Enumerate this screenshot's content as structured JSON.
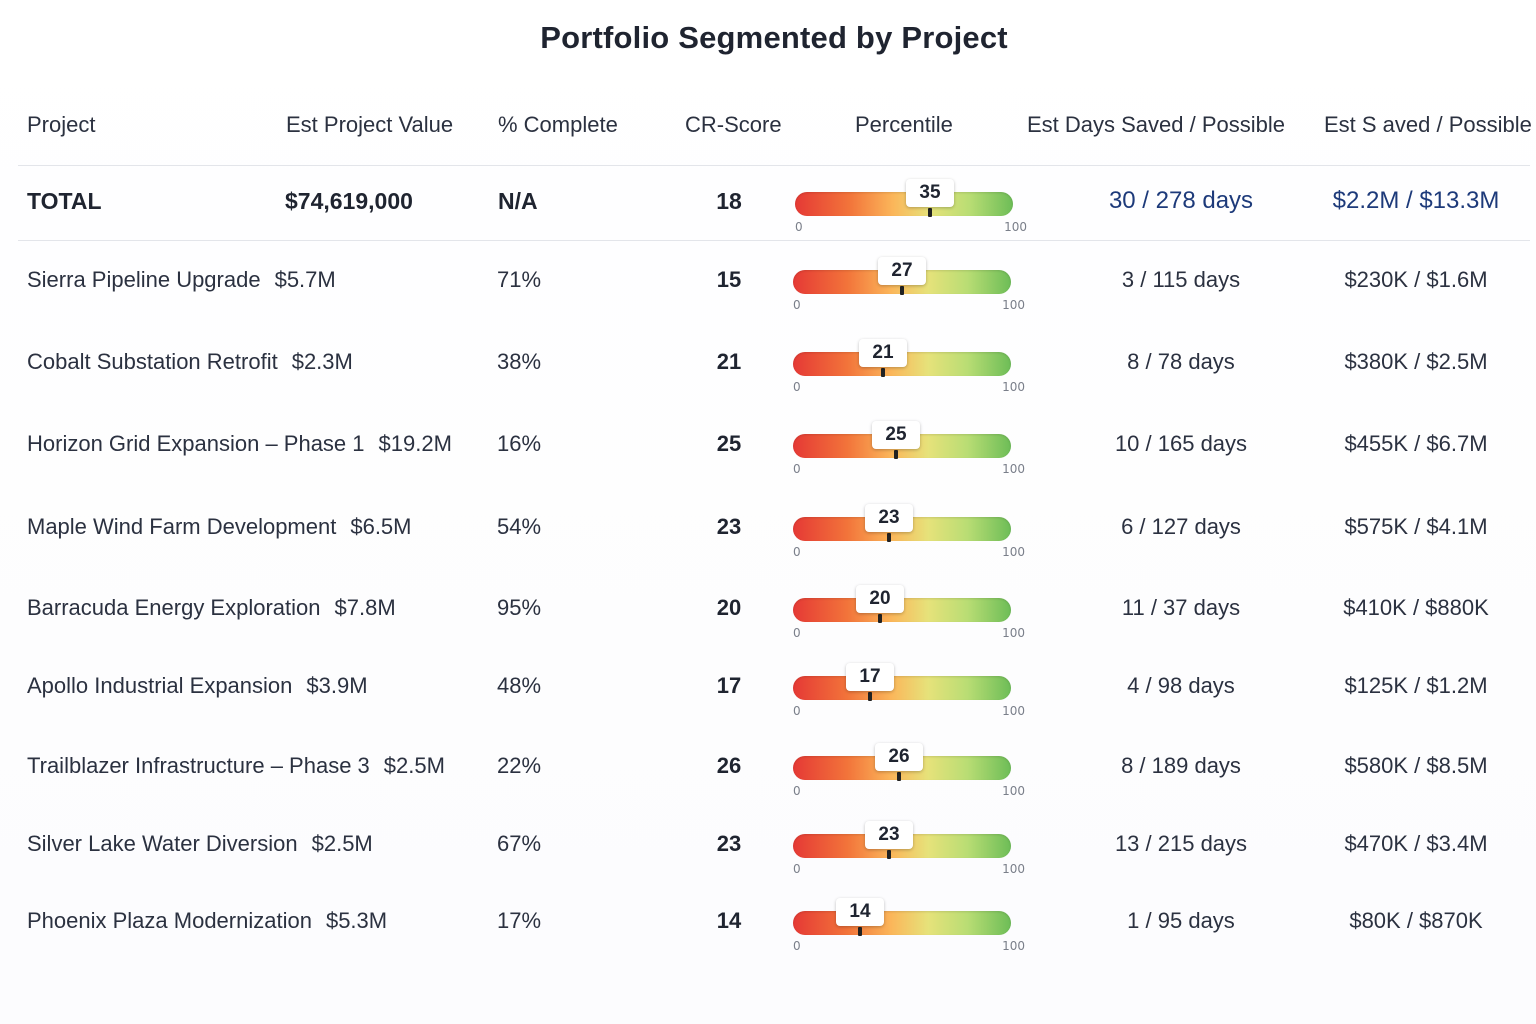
{
  "title": "Portfolio Segmented by Project",
  "headers": {
    "project": "Project",
    "value": "Est Project Value",
    "complete": "% Complete",
    "score": "CR-Score",
    "percentile": "Percentile",
    "days": "Est Days Saved / Possible",
    "saved": "Est S aved / Possible"
  },
  "gauge": {
    "min_label": "0",
    "max_label": "100"
  },
  "total": {
    "name": "TOTAL",
    "value": "$74,619,000",
    "complete": "N/A",
    "score": "18",
    "percentile": 35,
    "percentile_label": "35",
    "days": "30 / 278 days",
    "saved": "$2.2M / $13.3M"
  },
  "rows": [
    {
      "name": "Sierra Pipeline Upgrade",
      "value": "$5.7M",
      "complete": "71%",
      "score": "15",
      "percentile": 27,
      "percentile_label": "27",
      "days": "3 / 115 days",
      "saved": "$230K / $1.6M"
    },
    {
      "name": "Cobalt Substation Retrofit",
      "value": "$2.3M",
      "complete": "38%",
      "score": "21",
      "percentile": 21,
      "percentile_label": "21",
      "days": "8 / 78 days",
      "saved": "$380K / $2.5M"
    },
    {
      "name": "Horizon Grid Expansion – Phase 1",
      "value": "$19.2M",
      "complete": "16%",
      "score": "25",
      "percentile": 25,
      "percentile_label": "25",
      "days": "10 / 165 days",
      "saved": "$455K / $6.7M"
    },
    {
      "name": "Maple Wind Farm Development",
      "value": "$6.5M",
      "complete": "54%",
      "score": "23",
      "percentile": 23,
      "percentile_label": "23",
      "days": "6 / 127 days",
      "saved": "$575K / $4.1M"
    },
    {
      "name": "Barracuda Energy Exploration",
      "value": "$7.8M",
      "complete": "95%",
      "score": "20",
      "percentile": 20,
      "percentile_label": "20",
      "days": "11 / 37 days",
      "saved": "$410K / $880K"
    },
    {
      "name": "Apollo Industrial Expansion",
      "value": "$3.9M",
      "complete": "48%",
      "score": "17",
      "percentile": 17,
      "percentile_label": "17",
      "days": "4 / 98 days",
      "saved": "$125K / $1.2M"
    },
    {
      "name": "Trailblazer Infrastructure – Phase 3",
      "value": "$2.5M",
      "complete": "22%",
      "score": "26",
      "percentile": 26,
      "percentile_label": "26",
      "days": "8 / 189 days",
      "saved": "$580K / $8.5M"
    },
    {
      "name": "Silver Lake Water Diversion",
      "value": "$2.5M",
      "complete": "67%",
      "score": "23",
      "percentile": 23,
      "percentile_label": "23",
      "days": "13 / 215 days",
      "saved": "$470K / $3.4M"
    },
    {
      "name": "Phoenix Plaza Modernization",
      "value": "$5.3M",
      "complete": "17%",
      "score": "14",
      "percentile": 14,
      "percentile_label": "14",
      "days": "1 / 95 days",
      "saved": "$80K / $870K"
    }
  ]
}
